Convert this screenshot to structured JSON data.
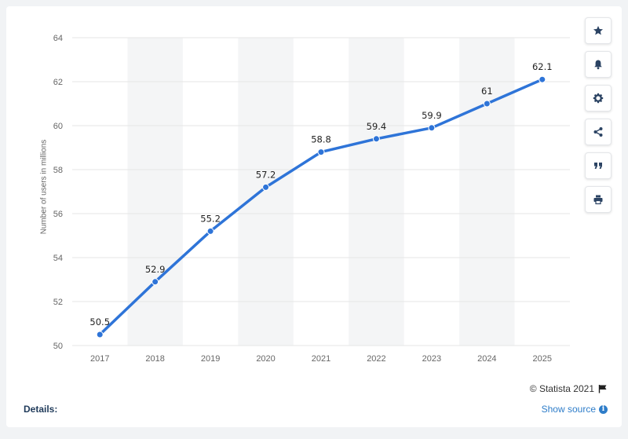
{
  "chart_data": {
    "type": "line",
    "x": [
      "2017",
      "2018",
      "2019",
      "2020",
      "2021",
      "2022",
      "2023",
      "2024",
      "2025"
    ],
    "series": [
      {
        "values": [
          50.5,
          52.9,
          55.2,
          57.2,
          58.8,
          59.4,
          59.9,
          61,
          62.1
        ],
        "data_labels": [
          "50.5",
          "52.9",
          "55.2",
          "57.2",
          "58.8",
          "59.4",
          "59.9",
          "61",
          "62.1"
        ]
      }
    ],
    "ylabel": "Number of users in millions",
    "ylim": [
      50,
      64
    ],
    "yticks": [
      50,
      52,
      54,
      56,
      58,
      60,
      62,
      64
    ],
    "grid": true,
    "line_color": "#2e74d8"
  },
  "toolbar": {
    "buttons": [
      {
        "name": "favorite-button",
        "icon": "star-icon"
      },
      {
        "name": "notification-button",
        "icon": "bell-icon"
      },
      {
        "name": "settings-button",
        "icon": "gear-icon"
      },
      {
        "name": "share-button",
        "icon": "share-icon"
      },
      {
        "name": "cite-button",
        "icon": "quote-icon"
      },
      {
        "name": "print-button",
        "icon": "print-icon"
      }
    ]
  },
  "footer": {
    "copyright": "© Statista 2021",
    "details_label": "Details:",
    "show_source": "Show source"
  }
}
